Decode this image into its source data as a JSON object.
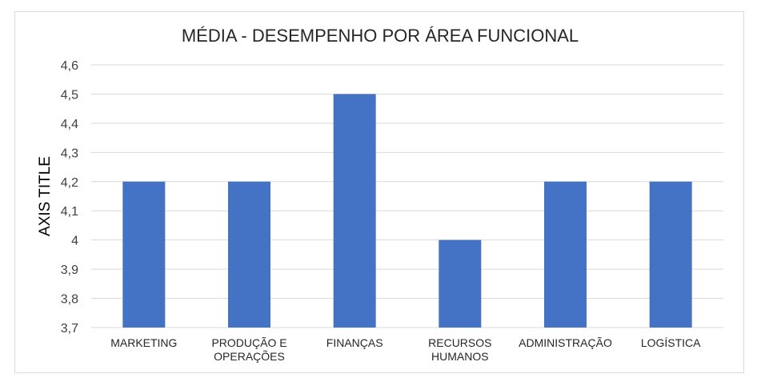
{
  "chart_data": {
    "type": "bar",
    "title": "MÉDIA - DESEMPENHO POR ÁREA FUNCIONAL",
    "ylabel": "AXIS TITLE",
    "xlabel": "",
    "categories": [
      [
        "MARKETING"
      ],
      [
        "PRODUÇÃO E",
        "OPERAÇÕES"
      ],
      [
        "FINANÇAS"
      ],
      [
        "RECURSOS",
        "HUMANOS"
      ],
      [
        "ADMINISTRAÇÃO"
      ],
      [
        "LOGÍSTICA"
      ]
    ],
    "values": [
      4.2,
      4.2,
      4.5,
      4.0,
      4.2,
      4.2
    ],
    "ylim": [
      3.7,
      4.6
    ],
    "yticks": [
      "3,7",
      "3,8",
      "3,9",
      "4",
      "4,1",
      "4,2",
      "4,3",
      "4,4",
      "4,5",
      "4,6"
    ],
    "grid": true,
    "bar_color": "#4472c4",
    "grid_color": "#d9d9d9"
  }
}
